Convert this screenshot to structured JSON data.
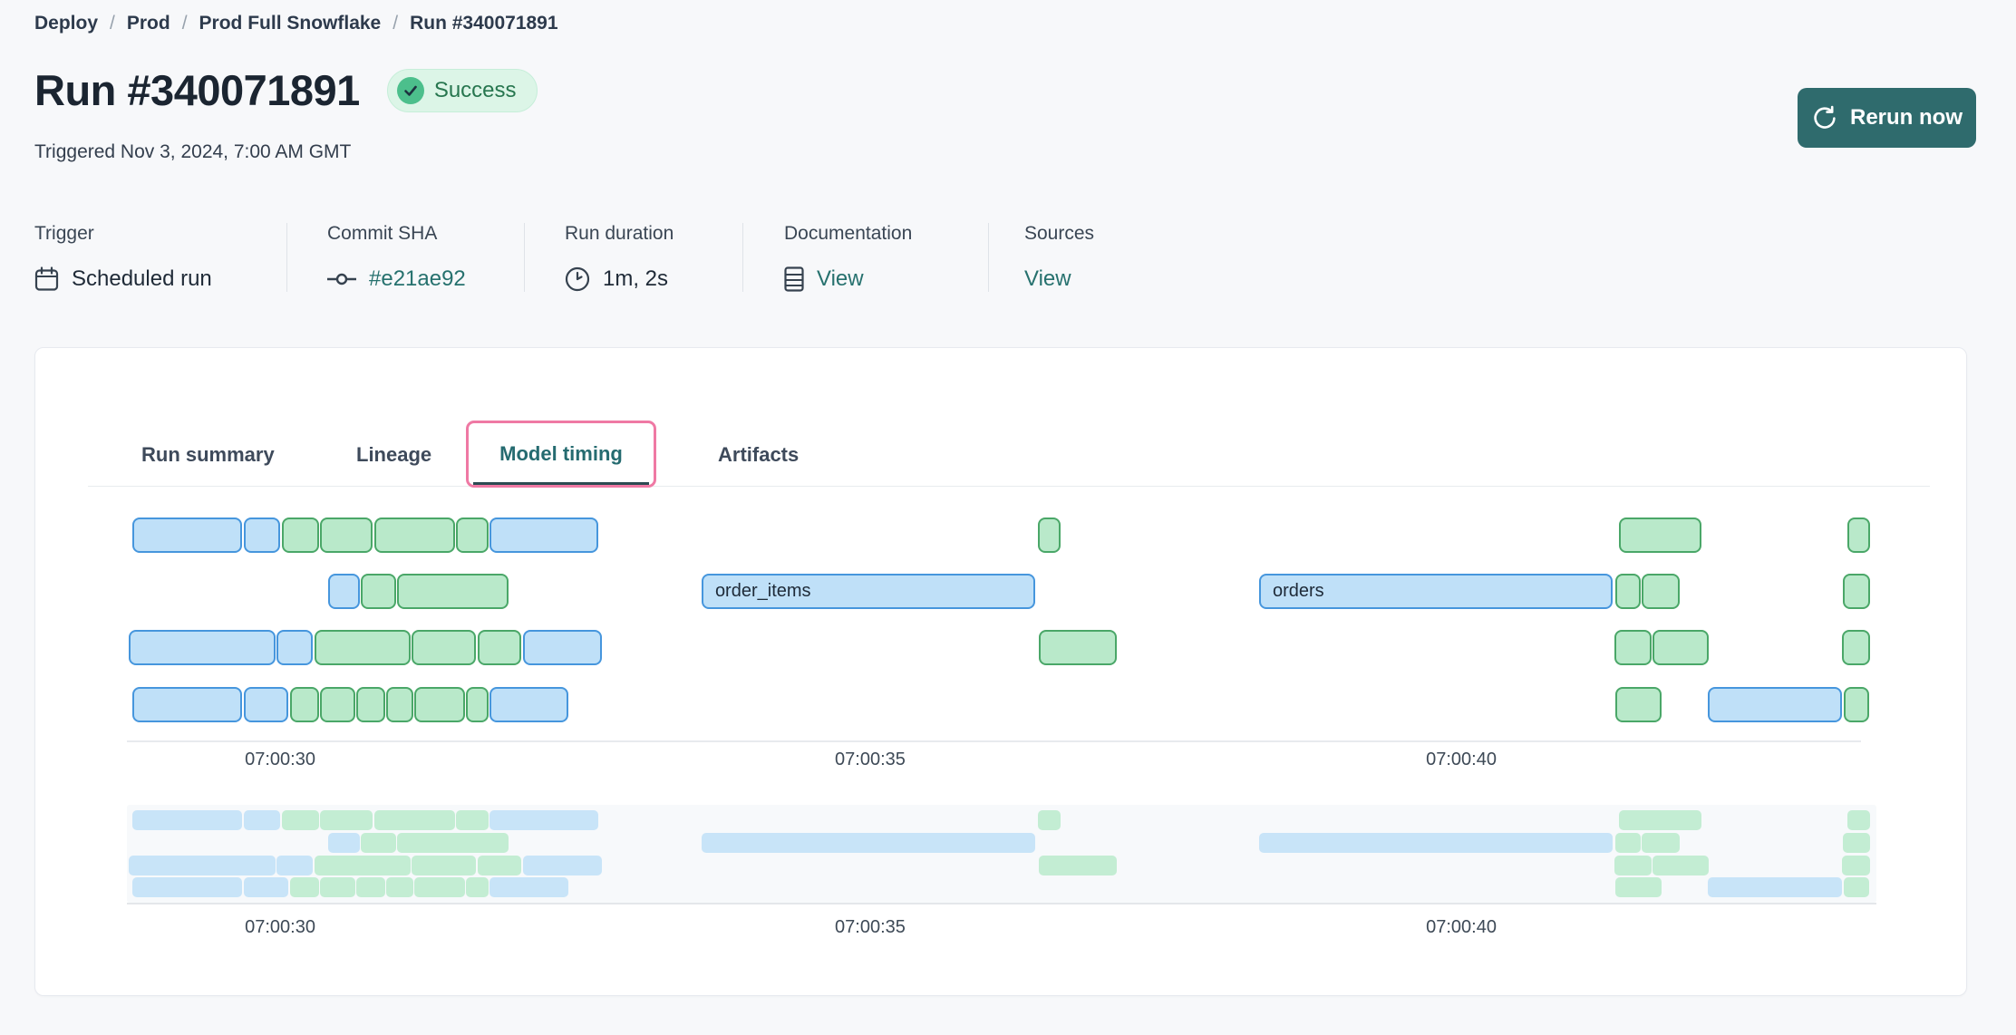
{
  "breadcrumb": {
    "items": [
      "Deploy",
      "Prod",
      "Prod Full Snowflake",
      "Run #340071891"
    ],
    "separator": "/"
  },
  "header": {
    "title": "Run #340071891",
    "status": "Success",
    "triggered": "Triggered Nov 3, 2024, 7:00 AM GMT",
    "rerun_label": "Rerun now"
  },
  "meta": {
    "columns": [
      {
        "label": "Trigger",
        "value": "Scheduled run",
        "icon": "calendar-icon"
      },
      {
        "label": "Commit SHA",
        "value": "#e21ae92",
        "icon": "commit-icon"
      },
      {
        "label": "Run duration",
        "value": "1m, 2s",
        "icon": "clock-icon"
      },
      {
        "label": "Documentation",
        "value": "View",
        "icon": "document-icon"
      },
      {
        "label": "Sources",
        "value": "View",
        "icon": null
      }
    ]
  },
  "tabs": [
    {
      "label": "Run summary",
      "active": false
    },
    {
      "label": "Lineage",
      "active": false
    },
    {
      "label": "Model timing",
      "active": true
    },
    {
      "label": "Artifacts",
      "active": false
    }
  ],
  "chart_data": {
    "type": "gantt",
    "title": "Model timing",
    "time_base": "07:00:00 GMT",
    "colors": {
      "main_blue_fill": "#bfe0f8",
      "main_blue_border": "#4696dd",
      "main_green_fill": "#b9e9ca",
      "main_green_border": "#4aa768",
      "mini_blue_fill": "#c8e4f8",
      "mini_green_fill": "#c3edd3",
      "mini_panel_bg": "#f7f9fb",
      "axis_line": "#e8eaee"
    },
    "x_axis": {
      "range_s": [
        28.7,
        43.6
      ],
      "ticks": [
        {
          "label": "07:00:30",
          "pos_pct": 8.67
        },
        {
          "label": "07:00:35",
          "pos_pct": 42.05
        },
        {
          "label": "07:00:40",
          "pos_pct": 75.49
        }
      ]
    },
    "rows": [
      {
        "bars": [
          {
            "color": "blue",
            "left_pct": 0.31,
            "width_pct": 6.21,
            "t": [
              28.7,
              29.7
            ]
          },
          {
            "color": "blue",
            "left_pct": 6.62,
            "width_pct": 2.05,
            "t": [
              29.7,
              30.0
            ]
          },
          {
            "color": "green",
            "left_pct": 8.77,
            "width_pct": 2.1,
            "t": [
              30.0,
              30.3
            ]
          },
          {
            "color": "green",
            "left_pct": 10.92,
            "width_pct": 2.97,
            "t": [
              30.3,
              30.8
            ]
          },
          {
            "color": "green",
            "left_pct": 14.0,
            "width_pct": 4.56,
            "t": [
              30.8,
              31.5
            ]
          },
          {
            "color": "green",
            "left_pct": 18.62,
            "width_pct": 1.85,
            "t": [
              31.5,
              31.8
            ]
          },
          {
            "color": "blue",
            "left_pct": 20.51,
            "width_pct": 6.15,
            "t": [
              31.8,
              32.7
            ]
          },
          {
            "color": "green",
            "left_pct": 51.54,
            "width_pct": 1.28,
            "t": [
              36.4,
              36.6
            ]
          },
          {
            "color": "green",
            "left_pct": 84.41,
            "width_pct": 4.67,
            "t": [
              41.3,
              42.0
            ]
          },
          {
            "color": "green",
            "left_pct": 97.33,
            "width_pct": 1.28,
            "t": [
              43.3,
              43.5
            ]
          }
        ]
      },
      {
        "bars": [
          {
            "color": "blue",
            "left_pct": 11.38,
            "width_pct": 1.79,
            "t": [
              30.4,
              30.7
            ]
          },
          {
            "color": "green",
            "left_pct": 13.23,
            "width_pct": 2.0,
            "t": [
              30.7,
              31.0
            ]
          },
          {
            "color": "green",
            "left_pct": 15.28,
            "width_pct": 6.31,
            "t": [
              31.0,
              31.9
            ]
          },
          {
            "color": "blue",
            "left_pct": 32.51,
            "width_pct": 18.87,
            "t": [
              33.6,
              36.4
            ],
            "label": "order_items"
          },
          {
            "color": "blue",
            "left_pct": 64.05,
            "width_pct": 20.0,
            "t": [
              38.3,
              41.3
            ],
            "label": "orders"
          },
          {
            "color": "green",
            "left_pct": 84.21,
            "width_pct": 1.44,
            "t": [
              41.3,
              41.5
            ]
          },
          {
            "color": "green",
            "left_pct": 85.69,
            "width_pct": 2.15,
            "t": [
              41.5,
              41.9
            ]
          },
          {
            "color": "green",
            "left_pct": 97.08,
            "width_pct": 1.54,
            "t": [
              43.2,
              43.5
            ]
          }
        ]
      },
      {
        "bars": [
          {
            "color": "blue",
            "left_pct": 0.1,
            "width_pct": 8.31,
            "t": [
              28.7,
              30.0
            ]
          },
          {
            "color": "blue",
            "left_pct": 8.46,
            "width_pct": 2.05,
            "t": [
              30.0,
              30.3
            ]
          },
          {
            "color": "green",
            "left_pct": 10.62,
            "width_pct": 5.44,
            "t": [
              30.3,
              31.1
            ]
          },
          {
            "color": "green",
            "left_pct": 16.1,
            "width_pct": 3.64,
            "t": [
              31.1,
              31.7
            ]
          },
          {
            "color": "green",
            "left_pct": 19.85,
            "width_pct": 2.46,
            "t": [
              31.7,
              32.0
            ]
          },
          {
            "color": "blue",
            "left_pct": 22.41,
            "width_pct": 4.46,
            "t": [
              32.1,
              32.7
            ]
          },
          {
            "color": "green",
            "left_pct": 51.59,
            "width_pct": 4.41,
            "t": [
              36.4,
              37.1
            ]
          },
          {
            "color": "green",
            "left_pct": 84.15,
            "width_pct": 2.1,
            "t": [
              41.3,
              41.6
            ]
          },
          {
            "color": "green",
            "left_pct": 86.31,
            "width_pct": 3.18,
            "t": [
              41.6,
              42.1
            ]
          },
          {
            "color": "green",
            "left_pct": 97.03,
            "width_pct": 1.59,
            "t": [
              43.2,
              43.5
            ]
          }
        ]
      },
      {
        "bars": [
          {
            "color": "blue",
            "left_pct": 0.31,
            "width_pct": 6.21,
            "t": [
              28.7,
              29.7
            ]
          },
          {
            "color": "blue",
            "left_pct": 6.62,
            "width_pct": 2.51,
            "t": [
              29.7,
              30.1
            ]
          },
          {
            "color": "green",
            "left_pct": 9.23,
            "width_pct": 1.64,
            "t": [
              30.1,
              30.3
            ]
          },
          {
            "color": "green",
            "left_pct": 10.92,
            "width_pct": 2.0,
            "t": [
              30.3,
              30.6
            ]
          },
          {
            "color": "green",
            "left_pct": 12.97,
            "width_pct": 1.64,
            "t": [
              30.6,
              30.9
            ]
          },
          {
            "color": "green",
            "left_pct": 14.67,
            "width_pct": 1.54,
            "t": [
              30.9,
              31.1
            ]
          },
          {
            "color": "green",
            "left_pct": 16.26,
            "width_pct": 2.87,
            "t": [
              31.1,
              31.6
            ]
          },
          {
            "color": "green",
            "left_pct": 19.18,
            "width_pct": 1.28,
            "t": [
              31.6,
              31.8
            ]
          },
          {
            "color": "blue",
            "left_pct": 20.51,
            "width_pct": 4.46,
            "t": [
              31.8,
              32.4
            ]
          },
          {
            "color": "green",
            "left_pct": 84.21,
            "width_pct": 2.62,
            "t": [
              41.3,
              41.7
            ]
          },
          {
            "color": "blue",
            "left_pct": 89.44,
            "width_pct": 7.59,
            "t": [
              42.1,
              43.2
            ]
          },
          {
            "color": "green",
            "left_pct": 97.13,
            "width_pct": 1.44,
            "t": [
              43.2,
              43.5
            ]
          }
        ]
      }
    ]
  }
}
